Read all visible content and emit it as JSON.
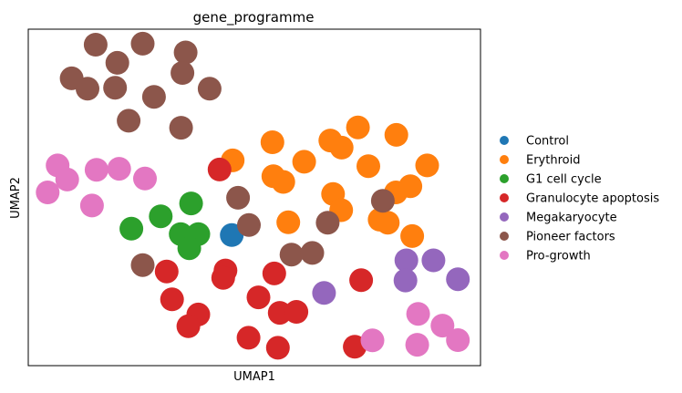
{
  "chart_data": {
    "type": "scatter",
    "title": "gene_programme",
    "xlabel": "UMAP1",
    "ylabel": "UMAP2",
    "xlim": [
      0,
      100
    ],
    "ylim": [
      0,
      100
    ],
    "grid": false,
    "ticks": false,
    "legend_position": "right",
    "series": [
      {
        "name": "Control",
        "color": "#1f77b4",
        "points": [
          [
            45.0,
            38.8
          ]
        ]
      },
      {
        "name": "Erythroid",
        "color": "#ff7f0e",
        "points": [
          [
            45.2,
            61.0
          ],
          [
            54.0,
            66.4
          ],
          [
            54.2,
            56.3
          ],
          [
            56.4,
            54.6
          ],
          [
            61.0,
            60.6
          ],
          [
            66.8,
            66.9
          ],
          [
            69.3,
            64.8
          ],
          [
            72.9,
            70.8
          ],
          [
            75.2,
            59.3
          ],
          [
            81.4,
            68.6
          ],
          [
            81.3,
            51.5
          ],
          [
            67.4,
            51.0
          ],
          [
            69.2,
            46.2
          ],
          [
            77.7,
            43.4
          ],
          [
            84.9,
            38.5
          ],
          [
            79.5,
            42.5
          ],
          [
            88.2,
            59.5
          ],
          [
            84.5,
            53.3
          ],
          [
            57.5,
            42.6
          ]
        ]
      },
      {
        "name": "G1 cell cycle",
        "color": "#2ca02c",
        "points": [
          [
            36.0,
            48.2
          ],
          [
            29.3,
            44.4
          ],
          [
            22.8,
            40.7
          ],
          [
            33.7,
            39.1
          ],
          [
            37.6,
            39.1
          ],
          [
            35.6,
            34.9
          ]
        ]
      },
      {
        "name": "Granulocyte apoptosis",
        "color": "#d62728",
        "points": [
          [
            42.3,
            58.3
          ],
          [
            30.6,
            28.0
          ],
          [
            43.6,
            28.3
          ],
          [
            43.1,
            26.1
          ],
          [
            54.4,
            27.4
          ],
          [
            31.8,
            19.7
          ],
          [
            37.6,
            15.2
          ],
          [
            35.4,
            11.7
          ],
          [
            50.9,
            20.3
          ],
          [
            55.6,
            15.7
          ],
          [
            59.3,
            16.0
          ],
          [
            48.7,
            8.3
          ],
          [
            55.2,
            5.3
          ],
          [
            73.6,
            25.4
          ],
          [
            72.2,
            5.6
          ]
        ]
      },
      {
        "name": "Megakaryocyte",
        "color": "#9467bd",
        "points": [
          [
            65.4,
            21.6
          ],
          [
            83.6,
            31.3
          ],
          [
            89.6,
            31.3
          ],
          [
            83.4,
            25.3
          ],
          [
            95.0,
            25.7
          ]
        ]
      },
      {
        "name": "Pioneer factors",
        "color": "#8c564b",
        "points": [
          [
            14.9,
            95.4
          ],
          [
            25.3,
            95.7
          ],
          [
            34.8,
            93.1
          ],
          [
            19.7,
            90.0
          ],
          [
            34.1,
            87.0
          ],
          [
            9.6,
            85.4
          ],
          [
            13.1,
            82.3
          ],
          [
            19.2,
            82.6
          ],
          [
            27.8,
            79.9
          ],
          [
            40.1,
            82.3
          ],
          [
            22.2,
            72.8
          ],
          [
            33.8,
            70.7
          ],
          [
            46.4,
            49.9
          ],
          [
            78.4,
            49.0
          ],
          [
            48.8,
            41.8
          ],
          [
            66.2,
            42.5
          ],
          [
            25.3,
            29.9
          ],
          [
            58.2,
            33.0
          ],
          [
            62.8,
            33.5
          ]
        ]
      },
      {
        "name": "Pro-growth",
        "color": "#e377c2",
        "points": [
          [
            6.5,
            59.5
          ],
          [
            15.1,
            58.2
          ],
          [
            20.1,
            58.5
          ],
          [
            8.6,
            55.3
          ],
          [
            25.8,
            55.6
          ],
          [
            4.3,
            51.5
          ],
          [
            14.1,
            47.6
          ],
          [
            86.2,
            15.4
          ],
          [
            91.6,
            11.9
          ],
          [
            76.1,
            7.5
          ],
          [
            86.0,
            6.2
          ],
          [
            95.0,
            7.6
          ]
        ]
      }
    ]
  }
}
